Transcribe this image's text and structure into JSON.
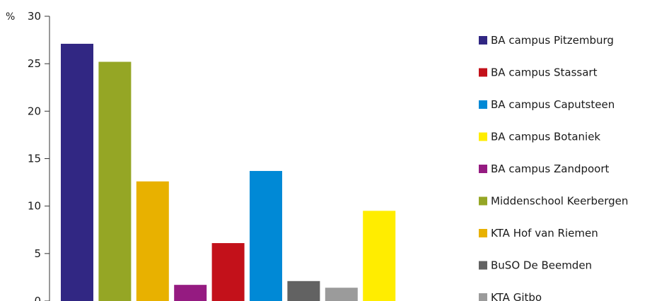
{
  "chart_data": {
    "type": "bar",
    "ylabel": "%",
    "ylim": [
      0,
      30
    ],
    "yticks": [
      0,
      5,
      10,
      15,
      20,
      25,
      30
    ],
    "grid": false,
    "legend_position": "right",
    "series": [
      {
        "name": "BA campus Pitzemburg",
        "value": 27.1,
        "color": "#312783"
      },
      {
        "name": "Middenschool Keerbergen",
        "value": 25.2,
        "color": "#95a625"
      },
      {
        "name": "KTA Hof van Riemen",
        "value": 12.6,
        "color": "#e8b100"
      },
      {
        "name": "BA campus Zandpoort",
        "value": 1.7,
        "color": "#951b81"
      },
      {
        "name": "BA campus Stassart",
        "value": 6.1,
        "color": "#c3111a"
      },
      {
        "name": "BA campus Caputsteen",
        "value": 13.7,
        "color": "#0089d6"
      },
      {
        "name": "BuSO De Beemden",
        "value": 2.1,
        "color": "#626262"
      },
      {
        "name": "KTA Gitbo",
        "value": 1.4,
        "color": "#9b9b9b"
      },
      {
        "name": "BA campus Botaniek",
        "value": 9.5,
        "color": "#ffed00"
      }
    ],
    "legend_order": [
      "BA campus Pitzemburg",
      "BA campus Stassart",
      "BA campus Caputsteen",
      "BA campus Botaniek",
      "BA campus Zandpoort",
      "Middenschool Keerbergen",
      "KTA Hof van Riemen",
      "BuSO De Beemden",
      "KTA Gitbo"
    ]
  }
}
